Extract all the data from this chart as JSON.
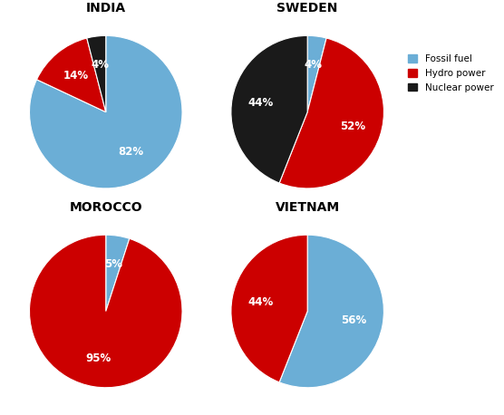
{
  "charts": [
    {
      "title": "INDIA",
      "values": [
        82,
        14,
        4
      ],
      "labels": [
        "82%",
        "14%",
        "4%"
      ],
      "colors": [
        "#6baed6",
        "#cc0000",
        "#1a1a1a"
      ],
      "startangle": 252,
      "counterclock": false
    },
    {
      "title": "SWEDEN",
      "values": [
        4,
        52,
        44
      ],
      "labels": [
        "4%",
        "52%",
        "44%"
      ],
      "colors": [
        "#6baed6",
        "#cc0000",
        "#1a1a1a"
      ],
      "startangle": 90,
      "counterclock": false
    },
    {
      "title": "MOROCCO",
      "values": [
        5,
        95
      ],
      "labels": [
        "5%",
        "95%"
      ],
      "colors": [
        "#6baed6",
        "#cc0000"
      ],
      "startangle": 90,
      "counterclock": false
    },
    {
      "title": "VIETNAM",
      "values": [
        56,
        44
      ],
      "labels": [
        "56%",
        "44%"
      ],
      "colors": [
        "#6baed6",
        "#cc0000"
      ],
      "startangle": 90,
      "counterclock": false
    }
  ],
  "legend_labels": [
    "Fossil fuel",
    "Hydro power",
    "Nuclear power"
  ],
  "legend_colors": [
    "#6baed6",
    "#cc0000",
    "#1a1a1a"
  ],
  "background_color": "#ffffff",
  "title_fontsize": 10,
  "label_fontsize": 8.5
}
